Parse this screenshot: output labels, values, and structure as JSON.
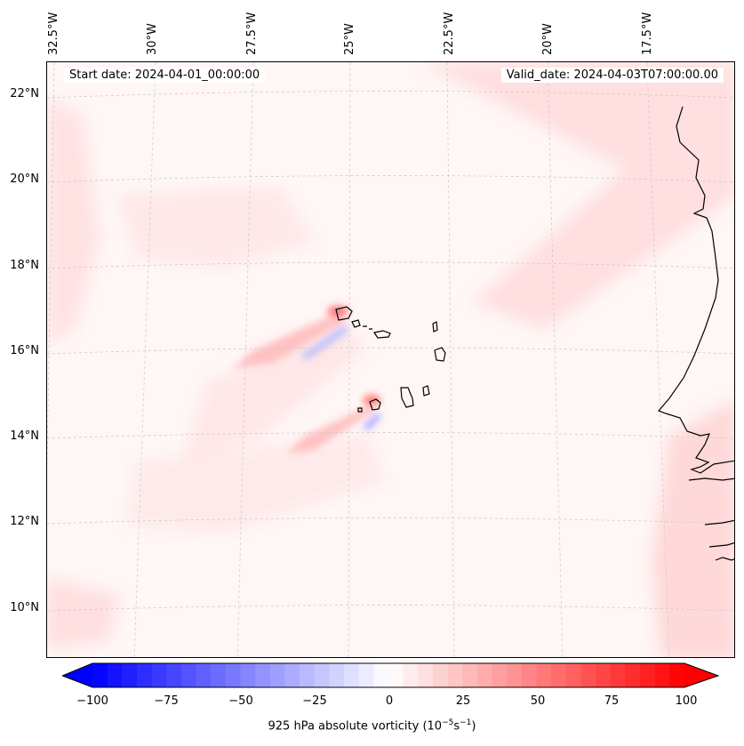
{
  "map": {
    "start_date": "Start date: 2024-04-01_00:00:00",
    "valid_date": "Valid_date: 2024-04-03T07:00:00.00",
    "lon_labels": [
      "32.5°W",
      "30°W",
      "27.5°W",
      "25°W",
      "22.5°W",
      "20°W",
      "17.5°W"
    ],
    "lat_labels": [
      "22°N",
      "20°N",
      "18°N",
      "16°N",
      "14°N",
      "12°N",
      "10°N"
    ],
    "field": "925 hPa absolute vorticity",
    "region": "Cape Verde Islands and West African coast"
  },
  "colorbar": {
    "label_prefix": "925 hPa absolute vorticity (10",
    "label_exp1": "−5",
    "label_mid": "s",
    "label_exp2": "−1",
    "label_suffix": ")",
    "ticks": [
      "−100",
      "−75",
      "−50",
      "−25",
      "0",
      "25",
      "50",
      "75",
      "100"
    ],
    "range": [
      -100,
      100
    ],
    "low_color": "#0000ff",
    "mid_color": "#ffffff",
    "high_color": "#ff0000"
  }
}
